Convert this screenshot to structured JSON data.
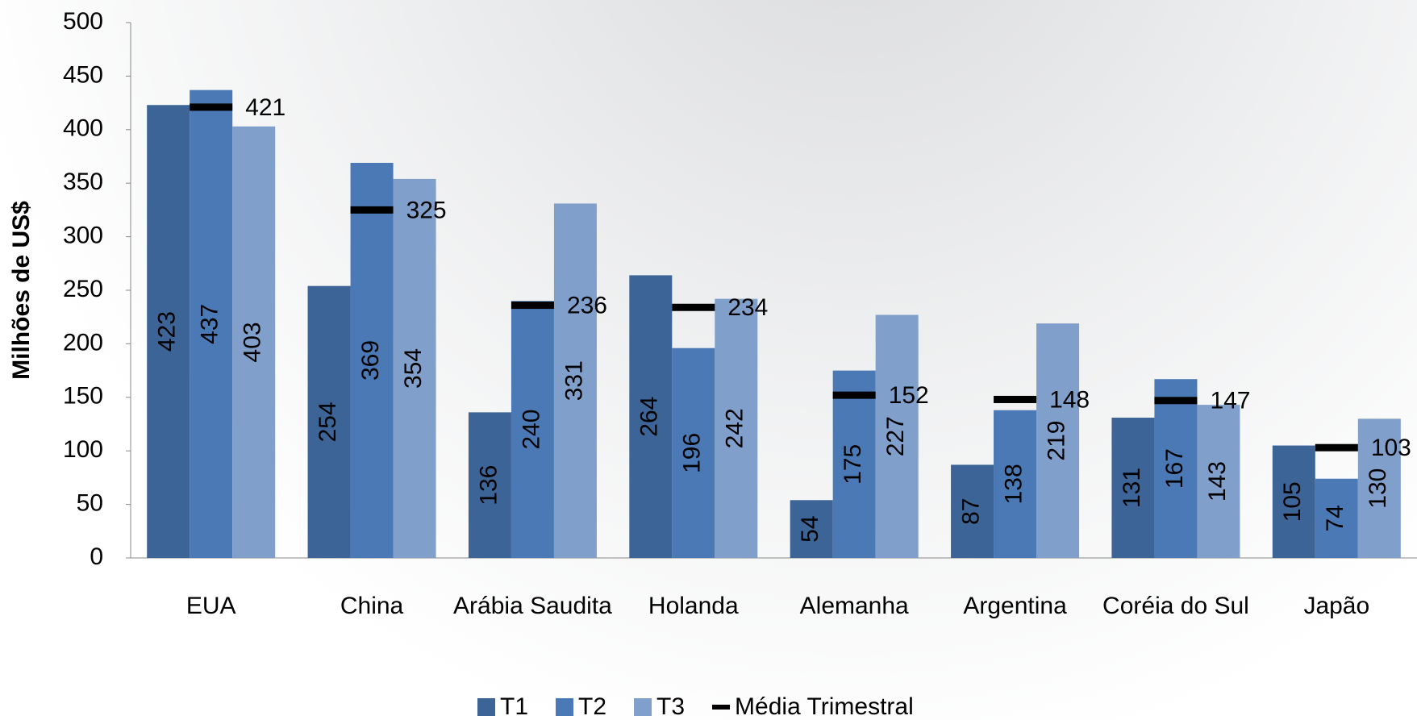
{
  "chart_data": {
    "type": "bar",
    "y_label": "Milhões de US$",
    "categories": [
      "EUA",
      "China",
      "Arábia Saudita",
      "Holanda",
      "Alemanha",
      "Argentina",
      "Coréia do Sul",
      "Japão"
    ],
    "series": [
      {
        "name": "T1",
        "color": "#3d6496",
        "values": [
          423,
          254,
          136,
          264,
          54,
          87,
          131,
          105
        ]
      },
      {
        "name": "T2",
        "color": "#4a79b5",
        "values": [
          437,
          369,
          240,
          196,
          175,
          138,
          167,
          74
        ]
      },
      {
        "name": "T3",
        "color": "#809fcb",
        "values": [
          403,
          354,
          331,
          242,
          227,
          219,
          143,
          130
        ]
      },
      {
        "name": "Média Trimestral",
        "color": "#000000",
        "mark": "dash",
        "values": [
          421,
          325,
          236,
          234,
          152,
          148,
          147,
          103
        ]
      }
    ],
    "ylim": [
      0,
      500
    ],
    "yticks": [
      0,
      50,
      100,
      150,
      200,
      250,
      300,
      350,
      400,
      450,
      500
    ]
  }
}
